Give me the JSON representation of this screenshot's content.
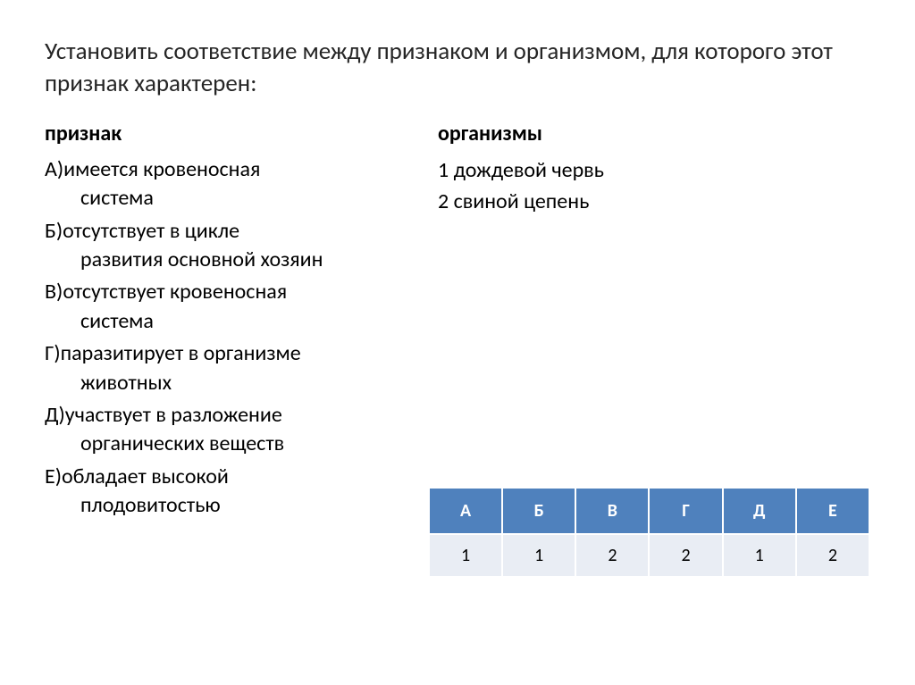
{
  "title": "Установить соответствие между признаком и организмом, для которого этот признак характерен:",
  "left": {
    "heading": "признак",
    "items": [
      {
        "lead": "А)имеется кровеносная",
        "cont": "система"
      },
      {
        "lead": "Б)отсутствует в цикле",
        "cont": "развития основной хозяин"
      },
      {
        "lead": "В)отсутствует кровеносная",
        "cont": "система"
      },
      {
        "lead": "Г)паразитирует в организме",
        "cont": "животных"
      },
      {
        "lead": "Д)участвует в разложение",
        "cont": "органических веществ"
      },
      {
        "lead": "Е)обладает высокой",
        "cont": "плодовитостью"
      }
    ]
  },
  "right": {
    "heading": "организмы",
    "items": [
      "1 дождевой червь",
      "2 свиной цепень"
    ]
  },
  "answer_table": {
    "type": "table",
    "header_bg": "#4f81bd",
    "header_fg": "#ffffff",
    "body_bg": "#e9edf4",
    "body_fg": "#000000",
    "border_color": "#ffffff",
    "columns": [
      "А",
      "Б",
      "В",
      "Г",
      "Д",
      "Е"
    ],
    "rows": [
      [
        "1",
        "1",
        "2",
        "2",
        "1",
        "2"
      ]
    ]
  }
}
